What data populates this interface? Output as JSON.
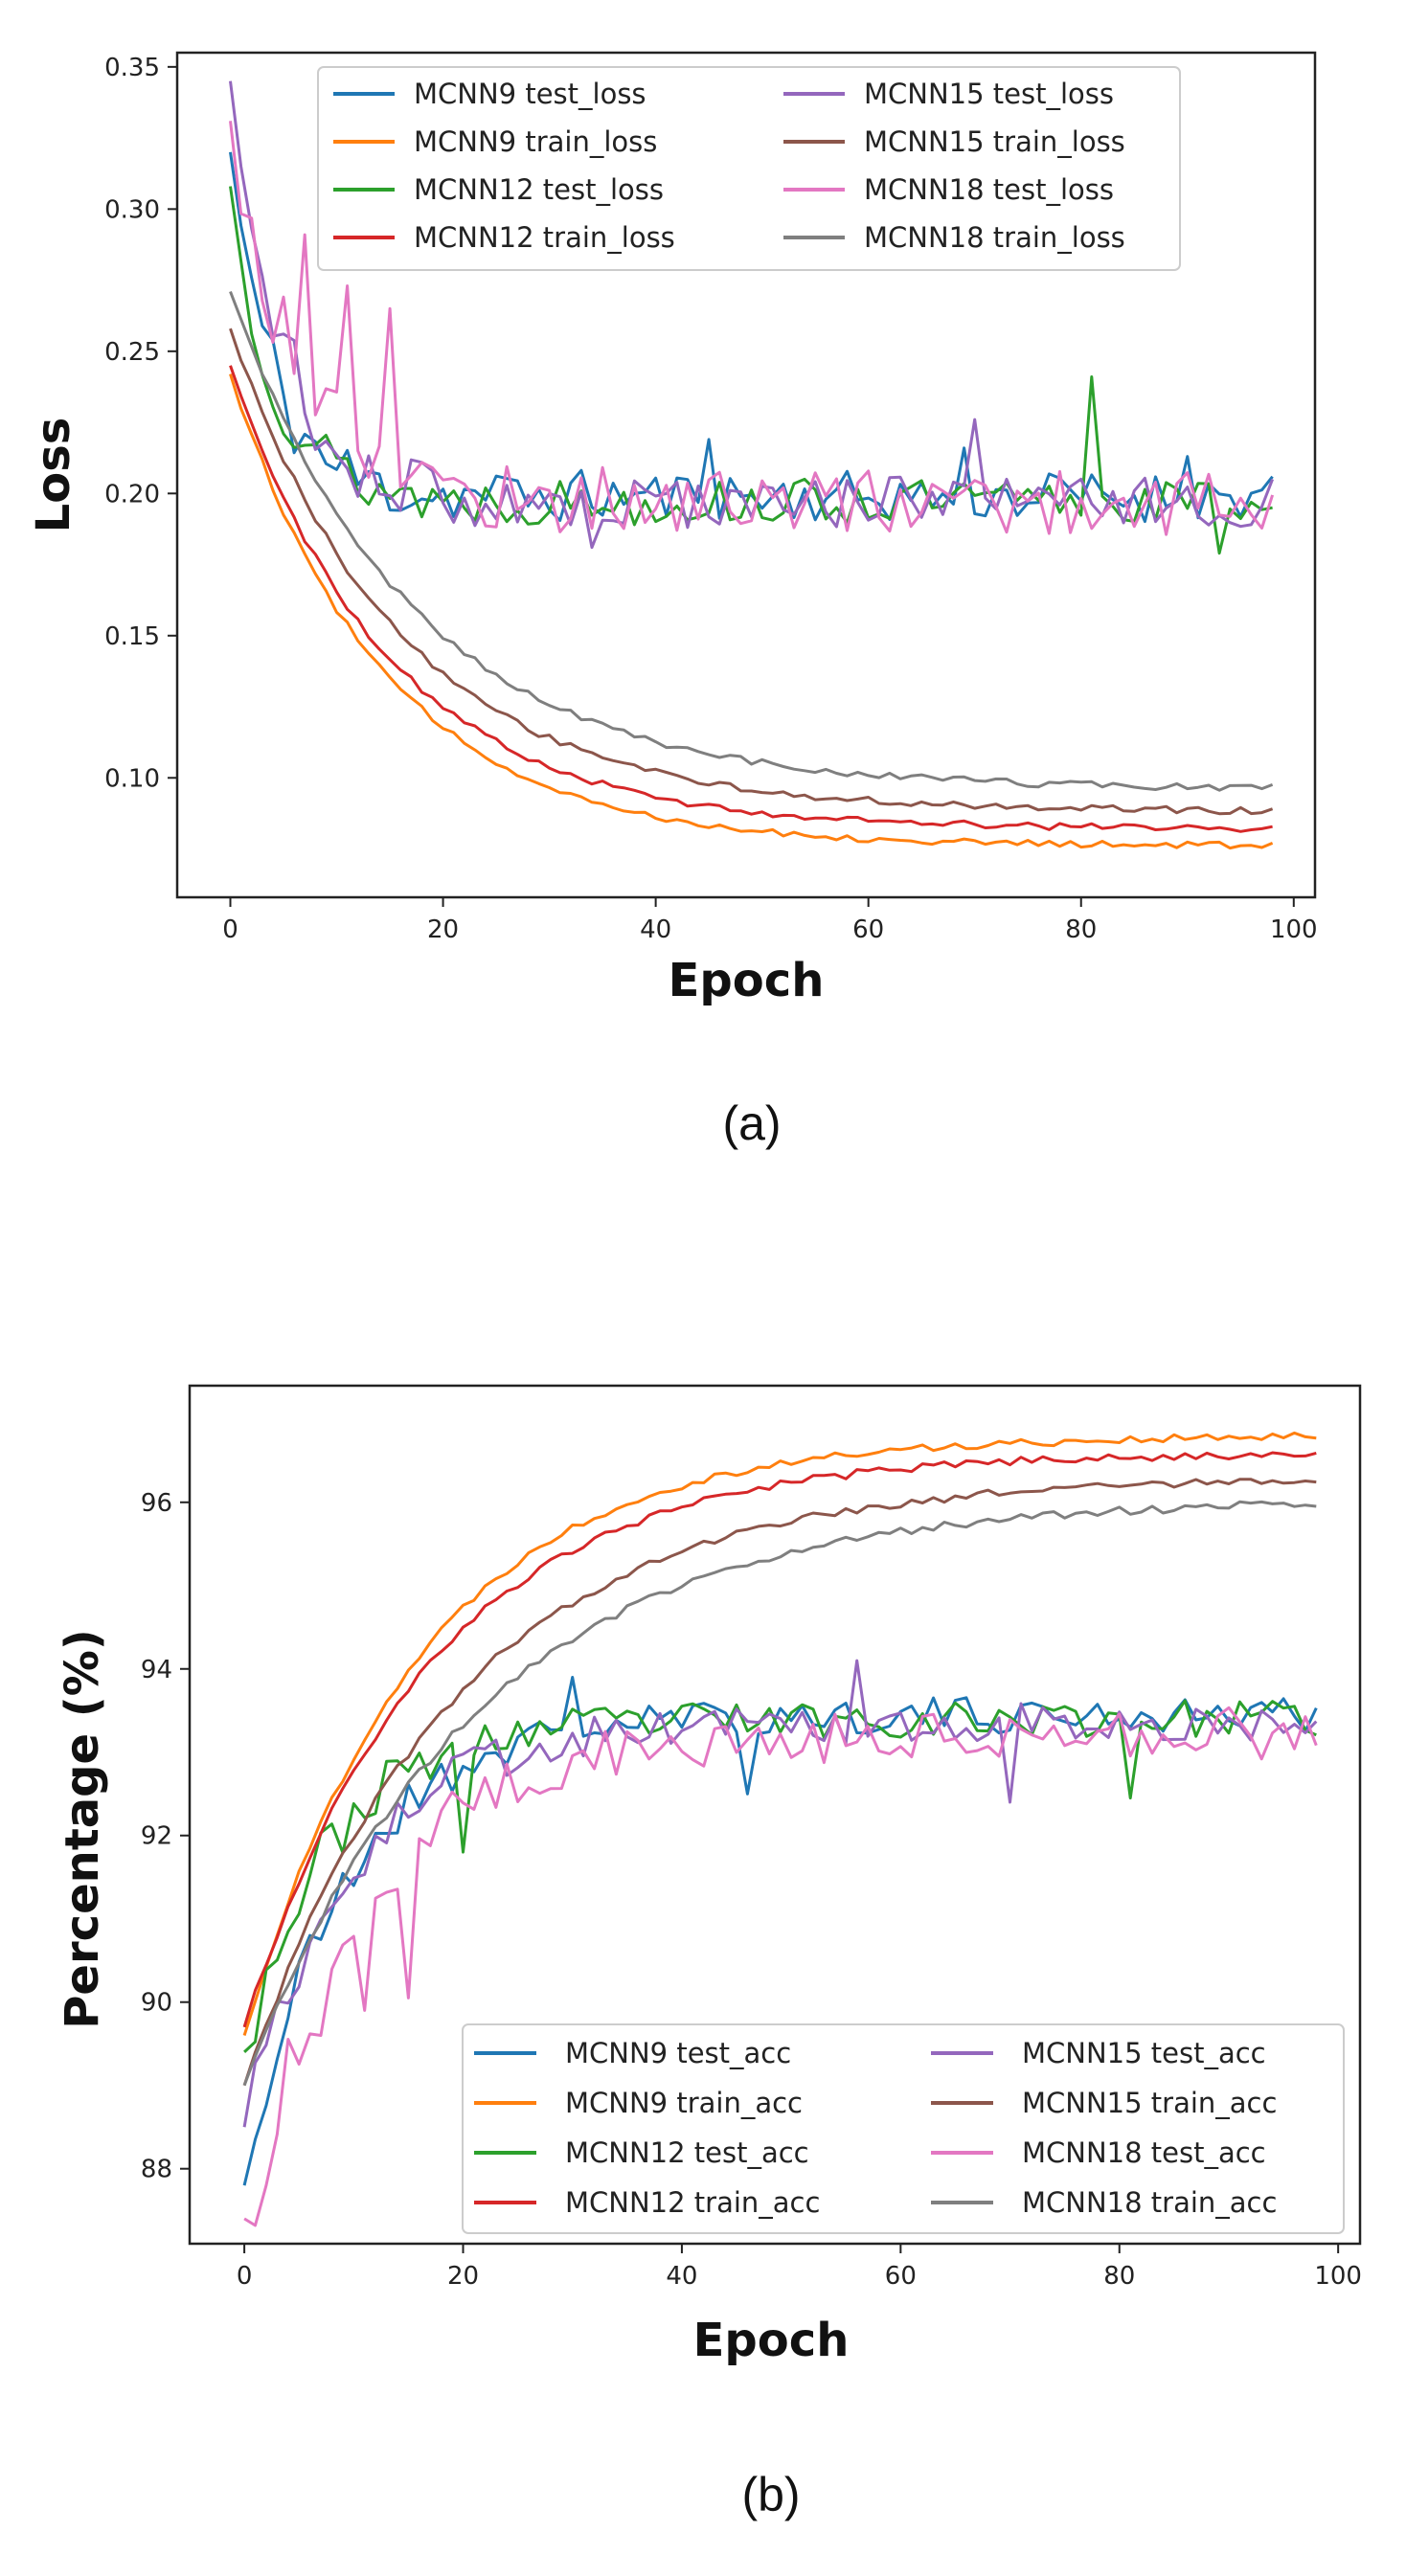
{
  "figure": {
    "caption_a": "(a)",
    "caption_b": "(b)"
  },
  "colors": {
    "MCNN9 test": "#1f77b4",
    "MCNN9 train": "#ff7f0e",
    "MCNN12 test": "#2ca02c",
    "MCNN12 train": "#d62728",
    "MCNN15 test": "#9467bd",
    "MCNN15 train": "#8c564b",
    "MCNN18 test": "#e377c2",
    "MCNN18 train": "#7f7f7f"
  },
  "chart_data": [
    {
      "id": "loss",
      "type": "line",
      "title": "",
      "xlabel": "Epoch",
      "ylabel": "Loss",
      "xlim": [
        -5,
        102
      ],
      "ylim": [
        0.058,
        0.355
      ],
      "xticks": [
        0,
        20,
        40,
        60,
        80,
        100
      ],
      "xtick_labels": [
        "0",
        "20",
        "40",
        "60",
        "80",
        "100"
      ],
      "yticks": [
        0.1,
        0.15,
        0.2,
        0.25,
        0.3,
        0.35
      ],
      "ytick_labels": [
        "0.10",
        "0.15",
        "0.20",
        "0.25",
        "0.30",
        "0.35"
      ],
      "grid": false,
      "legend_position": "top-center",
      "legend_columns": 2,
      "epochs": 99,
      "series": [
        {
          "name": "MCNN9 test_loss",
          "color_key": "MCNN9 test",
          "kind": "test",
          "start": 0.32,
          "plateau": 0.199,
          "tau": 4.0,
          "noise": 0.009,
          "seed": 11,
          "spikes": [
            [
              45,
              0.219
            ],
            [
              69,
              0.216
            ],
            [
              90,
              0.213
            ]
          ]
        },
        {
          "name": "MCNN9 train_loss",
          "color_key": "MCNN9 train",
          "kind": "train",
          "start": 0.242,
          "end": 0.076,
          "tau": 14.5,
          "noise": 0.0012,
          "seed": 12
        },
        {
          "name": "MCNN12 test_loss",
          "color_key": "MCNN12 test",
          "kind": "test",
          "start": 0.308,
          "plateau": 0.197,
          "tau": 4.5,
          "noise": 0.008,
          "seed": 13,
          "spikes": [
            [
              81,
              0.241
            ],
            [
              93,
              0.179
            ]
          ]
        },
        {
          "name": "MCNN12 train_loss",
          "color_key": "MCNN12 train",
          "kind": "train",
          "start": 0.245,
          "end": 0.082,
          "tau": 15.0,
          "noise": 0.0012,
          "seed": 14
        },
        {
          "name": "MCNN15 test_loss",
          "color_key": "MCNN15 test",
          "kind": "test",
          "start": 0.345,
          "plateau": 0.197,
          "tau": 5.0,
          "noise": 0.009,
          "seed": 15,
          "spikes": [
            [
              70,
              0.226
            ],
            [
              34,
              0.181
            ]
          ]
        },
        {
          "name": "MCNN15 train_loss",
          "color_key": "MCNN15 train",
          "kind": "train",
          "start": 0.258,
          "end": 0.088,
          "tau": 16.0,
          "noise": 0.0013,
          "seed": 16
        },
        {
          "name": "MCNN18 test_loss",
          "color_key": "MCNN18 test",
          "kind": "test",
          "start": 0.331,
          "plateau": 0.197,
          "tau": 6.5,
          "noise": 0.012,
          "seed": 17,
          "spikes": [
            [
              7,
              0.291
            ],
            [
              11,
              0.273
            ],
            [
              15,
              0.265
            ],
            [
              12,
              0.215
            ]
          ]
        },
        {
          "name": "MCNN18 train_loss",
          "color_key": "MCNN18 train",
          "kind": "train",
          "start": 0.271,
          "end": 0.096,
          "tau": 17.0,
          "noise": 0.0013,
          "seed": 18
        }
      ]
    },
    {
      "id": "accuracy",
      "type": "line",
      "title": "",
      "xlabel": "Epoch",
      "ylabel": "Percentage (%)",
      "xlim": [
        -5,
        102
      ],
      "ylim": [
        87.1,
        97.4
      ],
      "xticks": [
        0,
        20,
        40,
        60,
        80,
        100
      ],
      "xtick_labels": [
        "0",
        "20",
        "40",
        "60",
        "80",
        "100"
      ],
      "yticks": [
        88,
        90,
        92,
        94,
        96
      ],
      "ytick_labels": [
        "88",
        "90",
        "92",
        "94",
        "96"
      ],
      "grid": false,
      "legend_position": "lower-right",
      "legend_columns": 2,
      "epochs": 99,
      "series": [
        {
          "name": "MCNN9 test_acc",
          "color_key": "MCNN9 test",
          "kind": "test",
          "start": 87.8,
          "plateau": 93.45,
          "tau": 9.0,
          "noise": 0.22,
          "seed": 21,
          "spikes": [
            [
              30,
              93.9
            ],
            [
              46,
              92.5
            ]
          ]
        },
        {
          "name": "MCNN9 train_acc",
          "color_key": "MCNN9 train",
          "kind": "train",
          "start": 89.6,
          "end": 96.8,
          "tau": 16.0,
          "noise": 0.05,
          "seed": 22
        },
        {
          "name": "MCNN12 test_acc",
          "color_key": "MCNN12 test",
          "kind": "test",
          "start": 89.4,
          "plateau": 93.4,
          "tau": 8.0,
          "noise": 0.22,
          "seed": 23,
          "spikes": [
            [
              20,
              91.8
            ],
            [
              81,
              92.45
            ]
          ]
        },
        {
          "name": "MCNN12 train_acc",
          "color_key": "MCNN12 train",
          "kind": "train",
          "start": 89.7,
          "end": 96.6,
          "tau": 17.0,
          "noise": 0.05,
          "seed": 24
        },
        {
          "name": "MCNN15 test_acc",
          "color_key": "MCNN15 test",
          "kind": "test",
          "start": 88.5,
          "plateau": 93.35,
          "tau": 9.5,
          "noise": 0.24,
          "seed": 25,
          "spikes": [
            [
              56,
              94.1
            ],
            [
              70,
              92.4
            ]
          ]
        },
        {
          "name": "MCNN15 train_acc",
          "color_key": "MCNN15 train",
          "kind": "train",
          "start": 89.0,
          "end": 96.3,
          "tau": 19.0,
          "noise": 0.05,
          "seed": 26
        },
        {
          "name": "MCNN18 test_acc",
          "color_key": "MCNN18 test",
          "kind": "test",
          "start": 87.4,
          "plateau": 93.25,
          "tau": 11.0,
          "noise": 0.34,
          "seed": 27,
          "spikes": [
            [
              7,
              89.6
            ],
            [
              11,
              89.9
            ],
            [
              15,
              90.05
            ]
          ]
        },
        {
          "name": "MCNN18 train_acc",
          "color_key": "MCNN18 train",
          "kind": "train",
          "start": 89.0,
          "end": 96.05,
          "tau": 21.0,
          "noise": 0.05,
          "seed": 28
        }
      ]
    }
  ]
}
